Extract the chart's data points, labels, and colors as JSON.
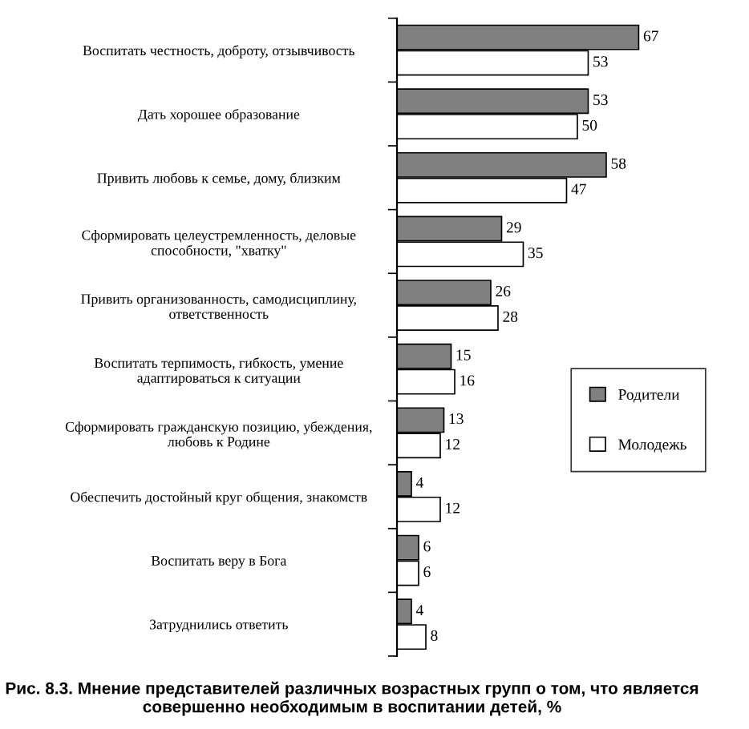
{
  "chart_data": {
    "type": "bar",
    "orientation": "horizontal",
    "data_labels": true,
    "legend": "right",
    "categories": [
      "Воспитать честность, доброту, отзывчивость",
      "Дать хорошее образование",
      "Привить любовь к семье, дому, близким",
      "Сформировать целеустремленность, деловые\nспособности, \"хватку\"",
      "Привить организованность, самодисциплину,\nответственность",
      "Воспитать терпимость, гибкость, умение\nадаптироваться к ситуации",
      "Сформировать гражданскую позицию, убеждения,\nлюбовь к Родине",
      "Обеспечить достойный круг общения, знакомств",
      "Воспитать веру в Бога",
      "Затруднились ответить"
    ],
    "series": [
      {
        "name": "Родители",
        "color": "#808080",
        "values": [
          67,
          53,
          58,
          29,
          26,
          15,
          13,
          4,
          6,
          4
        ]
      },
      {
        "name": "Молодежь",
        "color": "#ffffff",
        "values": [
          53,
          50,
          47,
          35,
          28,
          16,
          12,
          12,
          6,
          8
        ]
      }
    ],
    "annotations": [
      "Рис. 8.3. Мнение представителей различных возрастных групп о том, что является совершенно необходимым в воспитании детей, %"
    ]
  }
}
